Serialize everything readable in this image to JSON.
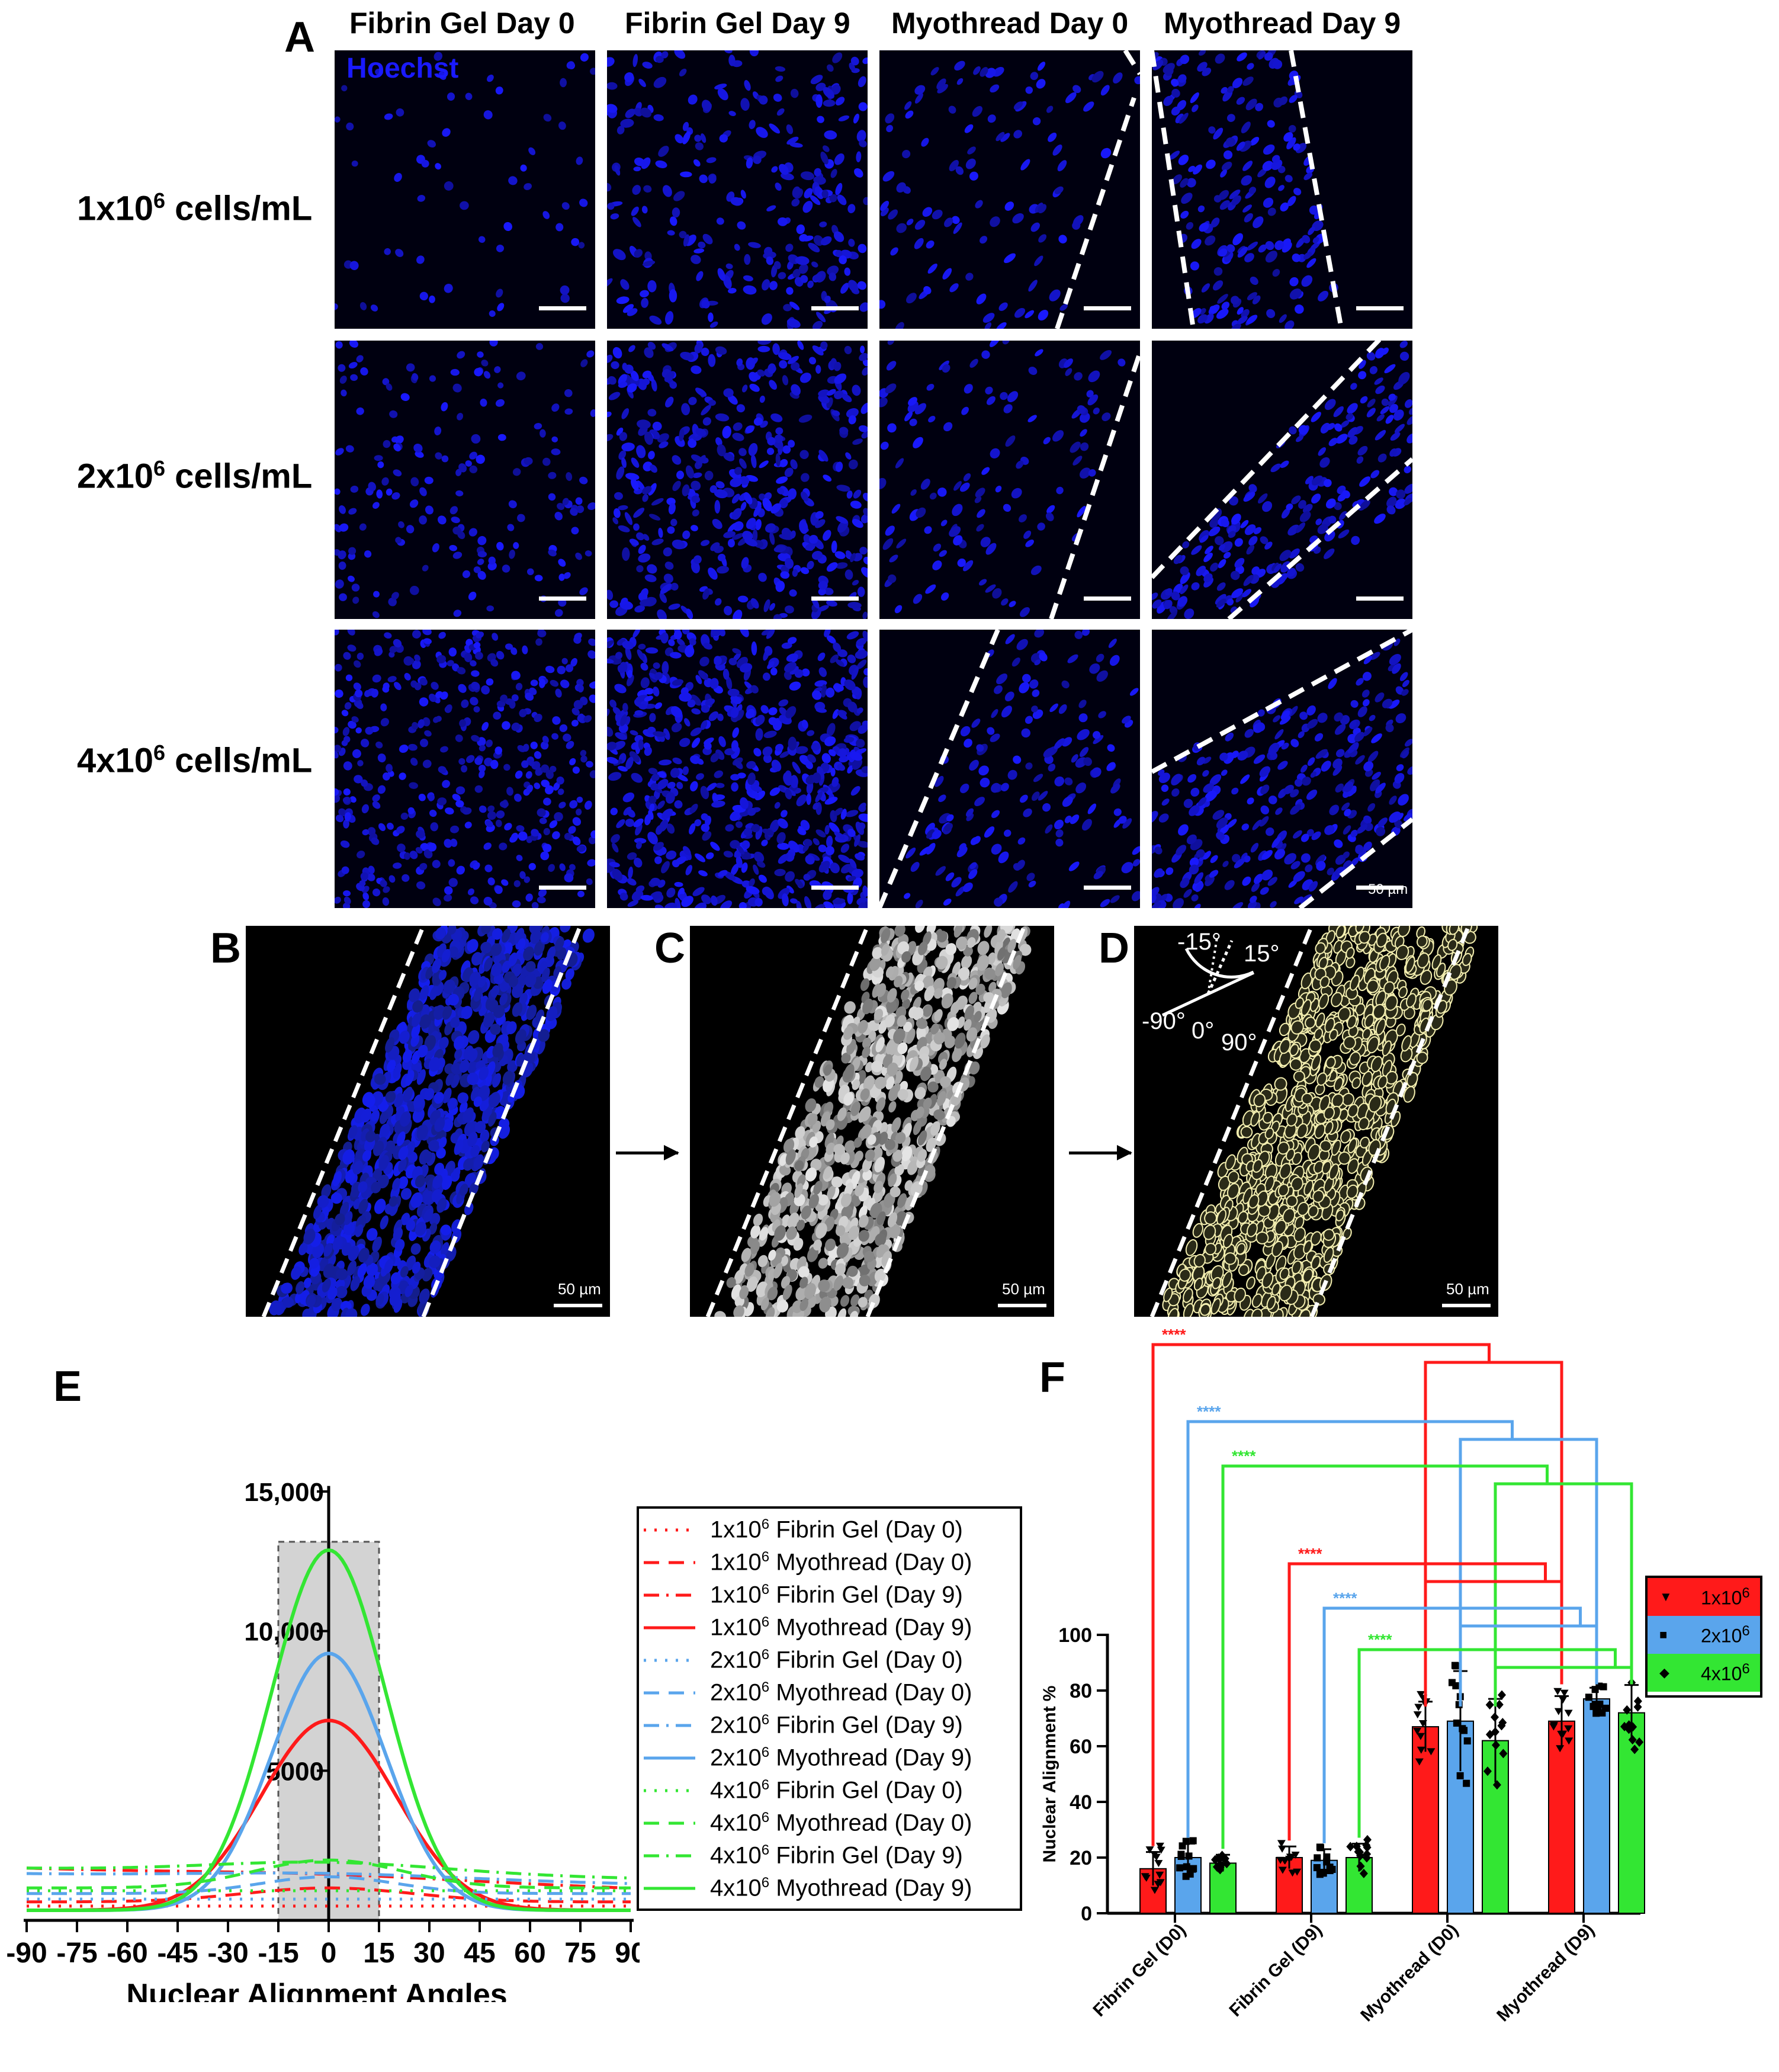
{
  "panel_letters": {
    "A": "A",
    "B": "B",
    "C": "C",
    "D": "D",
    "E": "E",
    "F": "F"
  },
  "panel_a": {
    "columns": [
      "Fibrin Gel Day 0",
      "Fibrin Gel Day 9",
      "Myothread Day 0",
      "Myothread Day 9"
    ],
    "rows": [
      {
        "base": "1x10",
        "exp": "6",
        "unit": " cells/mL"
      },
      {
        "base": "2x10",
        "exp": "6",
        "unit": " cells/mL"
      },
      {
        "base": "4x10",
        "exp": "6",
        "unit": " cells/mL"
      }
    ],
    "stain_label": "Hoechst",
    "scale_label": "50 µm"
  },
  "panel_bcd": {
    "scale_label": "50 µm",
    "angle_labels": {
      "neg15": "-15°",
      "pos15": "15°",
      "neg90": "-90°",
      "zero": "0°",
      "pos90": "90°"
    }
  },
  "colors": {
    "red": "#ff1a1a",
    "blue": "#5aa5ec",
    "green": "#33e633",
    "nuclei": "#1f2bff",
    "grey_band": "#d3d3d3"
  },
  "chart_data": [
    {
      "type": "line",
      "panel": "E",
      "xlabel": "Nuclear Alignment Angles",
      "ylabel": "",
      "xlim": [
        -90,
        90
      ],
      "ylim": [
        0,
        15000
      ],
      "x_ticks": [
        -90,
        -75,
        -60,
        -45,
        -30,
        -15,
        0,
        15,
        30,
        45,
        60,
        75,
        90
      ],
      "y_tick_labels": [
        "5000",
        "10,000",
        "15,000"
      ],
      "y_ticks": [
        5000,
        10000,
        15000
      ],
      "highlight_band": [
        -15,
        15
      ],
      "series": [
        {
          "name": "Fibrin Gel (Day 0)",
          "density": "1x10",
          "exp": "6",
          "color": "#ff1a1a",
          "dash": "dot",
          "baseline": 150,
          "peak": 150,
          "sigma": 40
        },
        {
          "name": "Myothread (Day 0)",
          "density": "1x10",
          "exp": "6",
          "color": "#ff1a1a",
          "dash": "dash",
          "baseline": 300,
          "peak": 800,
          "sigma": 25
        },
        {
          "name": "Fibrin Gel (Day 9)",
          "density": "1x10",
          "exp": "6",
          "color": "#ff1a1a",
          "dash": "dashdot",
          "baseline": 1500,
          "peak": 1650,
          "sigma": 40,
          "slope": -4
        },
        {
          "name": "Myothread (Day 9)",
          "density": "1x10",
          "exp": "6",
          "color": "#ff1a1a",
          "dash": "solid",
          "baseline": 0,
          "peak": 6800,
          "sigma": 20
        },
        {
          "name": "Fibrin Gel (Day 0)",
          "density": "2x10",
          "exp": "6",
          "color": "#5aa5ec",
          "dash": "dot",
          "baseline": 400,
          "peak": 400,
          "sigma": 40
        },
        {
          "name": "Myothread (Day 0)",
          "density": "2x10",
          "exp": "6",
          "color": "#5aa5ec",
          "dash": "dash",
          "baseline": 600,
          "peak": 1200,
          "sigma": 20
        },
        {
          "name": "Fibrin Gel (Day 9)",
          "density": "2x10",
          "exp": "6",
          "color": "#5aa5ec",
          "dash": "dashdot",
          "baseline": 1300,
          "peak": 1500,
          "sigma": 40,
          "slope": -2
        },
        {
          "name": "Myothread (Day 9)",
          "density": "2x10",
          "exp": "6",
          "color": "#5aa5ec",
          "dash": "solid",
          "baseline": 0,
          "peak": 9200,
          "sigma": 17
        },
        {
          "name": "Fibrin Gel (Day 0)",
          "density": "4x10",
          "exp": "6",
          "color": "#33e633",
          "dash": "dot",
          "baseline": 700,
          "peak": 700,
          "sigma": 40
        },
        {
          "name": "Myothread (Day 0)",
          "density": "4x10",
          "exp": "6",
          "color": "#33e633",
          "dash": "dash",
          "baseline": 800,
          "peak": 1800,
          "sigma": 22
        },
        {
          "name": "Fibrin Gel (Day 9)",
          "density": "4x10",
          "exp": "6",
          "color": "#33e633",
          "dash": "dashdot",
          "baseline": 1500,
          "peak": 1900,
          "sigma": 35,
          "slope": -2
        },
        {
          "name": "Myothread (Day 9)",
          "density": "4x10",
          "exp": "6",
          "color": "#33e633",
          "dash": "solid",
          "baseline": 0,
          "peak": 12900,
          "sigma": 17
        }
      ]
    },
    {
      "type": "bar",
      "panel": "F",
      "ylabel": "Nuclear Alignment %",
      "ylim": [
        0,
        100
      ],
      "y_ticks": [
        0,
        20,
        40,
        60,
        80,
        100
      ],
      "categories": [
        "Fibrin Gel (D0)",
        "Fibrin Gel (D9)",
        "Myothread (D0)",
        "Myothread (D9)"
      ],
      "series": [
        {
          "name": "1x10",
          "exp": "6",
          "color": "#ff1a1a",
          "marker": "▼",
          "values": [
            16,
            20,
            67,
            69
          ],
          "errors": [
            6,
            4,
            9,
            9
          ]
        },
        {
          "name": "2x10",
          "exp": "6",
          "color": "#5aa5ec",
          "marker": "■",
          "values": [
            20,
            19,
            69,
            77
          ],
          "errors": [
            5,
            4,
            18,
            4
          ]
        },
        {
          "name": "4x10",
          "exp": "6",
          "color": "#33e633",
          "marker": "◆",
          "values": [
            18,
            20,
            62,
            72
          ],
          "errors": [
            3,
            5,
            15,
            10
          ]
        }
      ],
      "significance": [
        {
          "label": "****",
          "color": "#ff1a1a"
        },
        {
          "label": "****",
          "color": "#5aa5ec"
        },
        {
          "label": "****",
          "color": "#33e633"
        },
        {
          "label": "****",
          "color": "#ff1a1a"
        },
        {
          "label": "****",
          "color": "#5aa5ec"
        },
        {
          "label": "****",
          "color": "#33e633"
        }
      ]
    }
  ]
}
